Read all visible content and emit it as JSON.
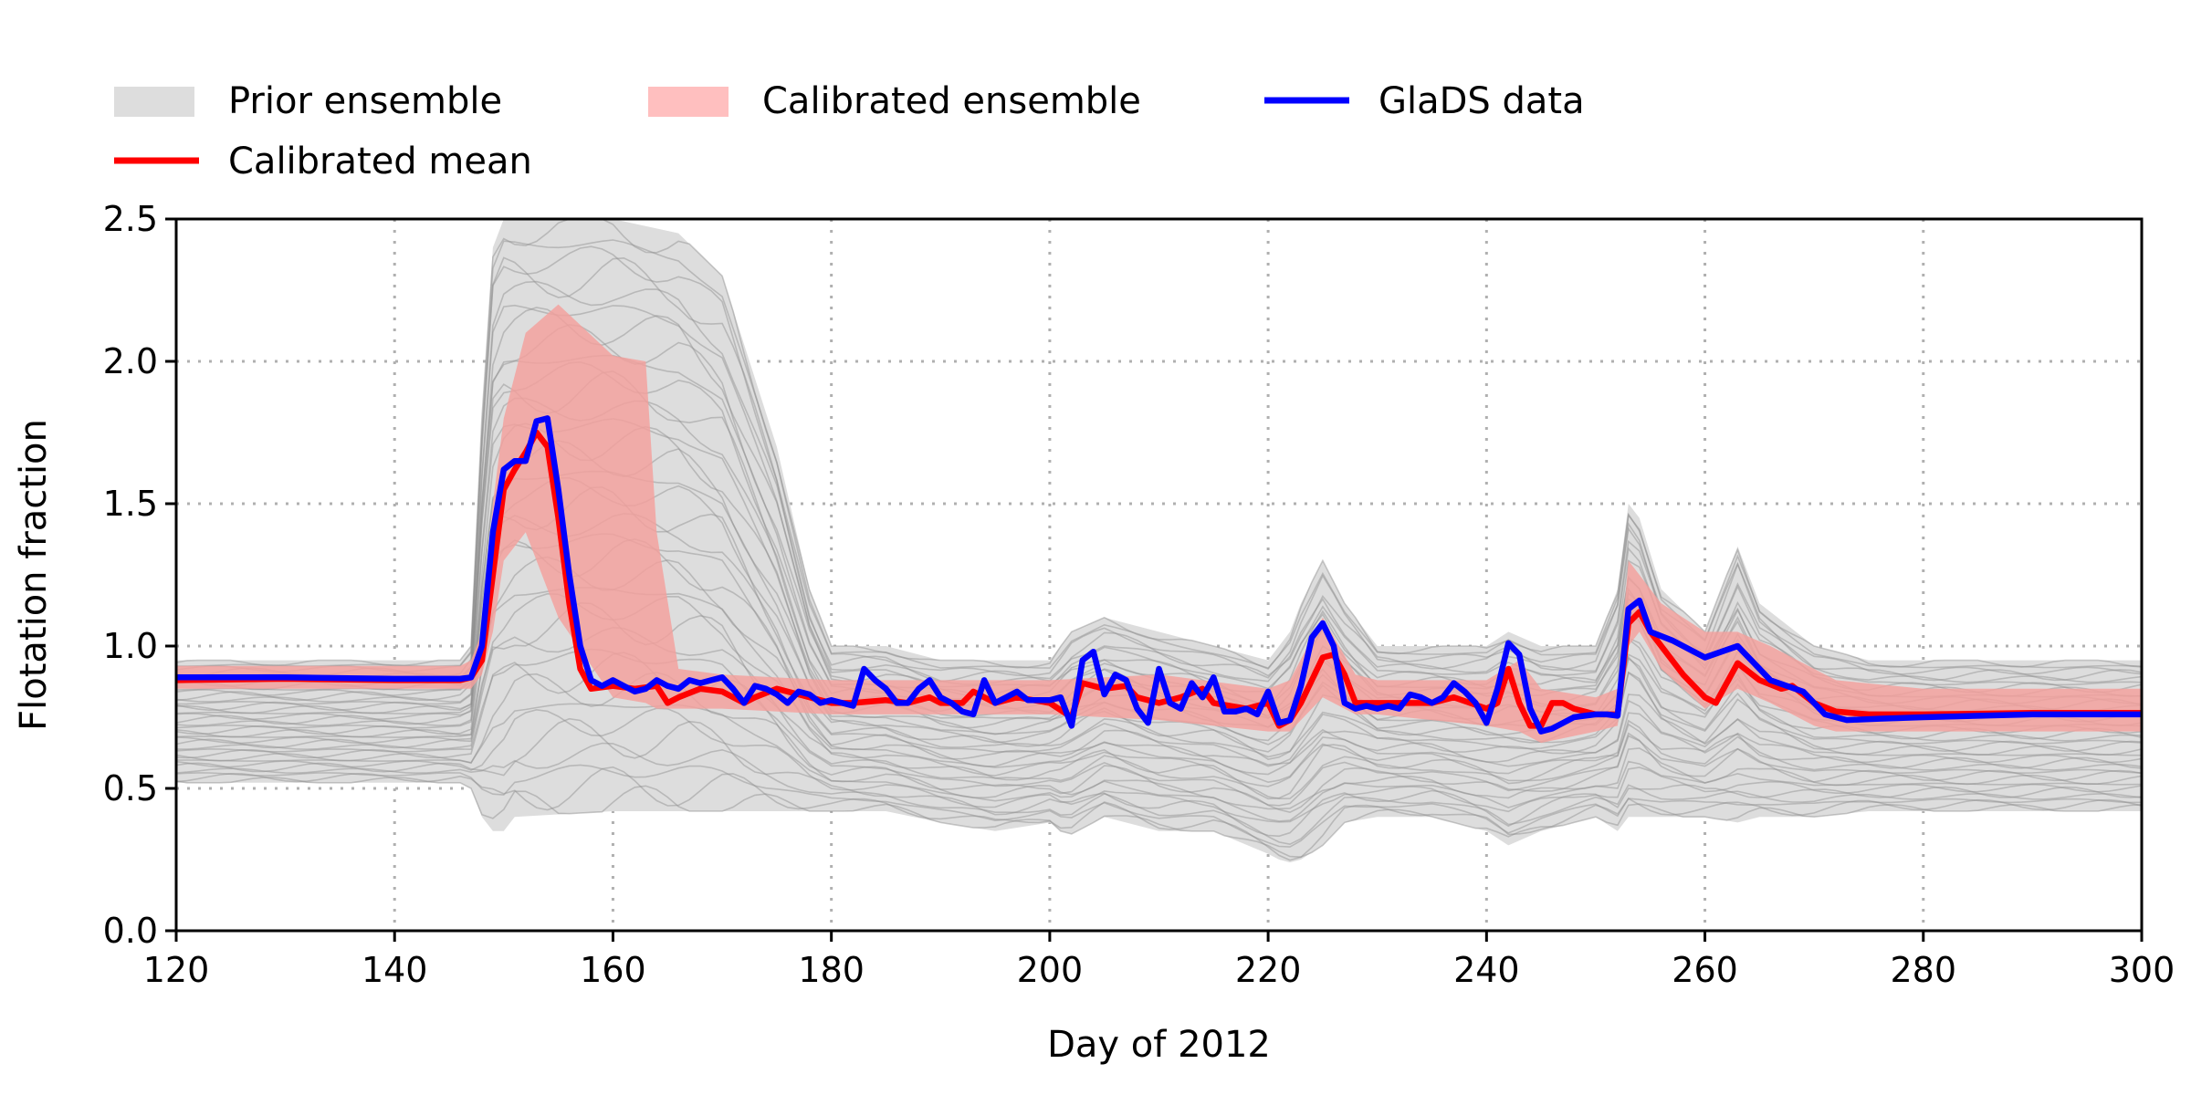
{
  "chart_data": {
    "type": "line",
    "xlabel": "Day of 2012",
    "ylabel": "Flotation fraction",
    "xlim": [
      120,
      300
    ],
    "ylim": [
      0,
      2.5
    ],
    "xticks": [
      120,
      140,
      160,
      180,
      200,
      220,
      240,
      260,
      280,
      300
    ],
    "yticks": [
      "0.0",
      "0.5",
      "1.0",
      "1.5",
      "2.0",
      "2.5"
    ],
    "grid": true,
    "legend": {
      "placement": "top-left, above plot",
      "entries": [
        {
          "label": "Prior ensemble",
          "kind": "band",
          "color": "#dddddd"
        },
        {
          "label": "Calibrated ensemble",
          "kind": "band",
          "color": "#ffbfbf"
        },
        {
          "label": "GlaDS data",
          "kind": "line",
          "color": "#0000ff"
        },
        {
          "label": "Calibrated mean",
          "kind": "line",
          "color": "#ff0000"
        }
      ]
    },
    "colors": {
      "prior_band": "#dddddd",
      "prior_lines": "#8c8c8c",
      "calibrated_band": "#f4a09c",
      "calibrated_mean": "#ff0000",
      "glads": "#0000ff",
      "grid": "#b0b0b0"
    },
    "prior_envelope": {
      "x": [
        120,
        146,
        147,
        148,
        149,
        150,
        151,
        160,
        166,
        170,
        175,
        178,
        180,
        181,
        185,
        190,
        195,
        200,
        201,
        202,
        205,
        210,
        215,
        220,
        221,
        222,
        223,
        225,
        227,
        230,
        235,
        240,
        242,
        245,
        250,
        252,
        253,
        254,
        256,
        260,
        263,
        265,
        270,
        275,
        280,
        290,
        300
      ],
      "lower": [
        0.52,
        0.52,
        0.5,
        0.4,
        0.35,
        0.35,
        0.4,
        0.42,
        0.42,
        0.42,
        0.42,
        0.42,
        0.42,
        0.42,
        0.42,
        0.38,
        0.35,
        0.38,
        0.35,
        0.34,
        0.4,
        0.35,
        0.35,
        0.27,
        0.25,
        0.24,
        0.25,
        0.3,
        0.38,
        0.4,
        0.4,
        0.35,
        0.3,
        0.35,
        0.4,
        0.35,
        0.4,
        0.4,
        0.4,
        0.4,
        0.38,
        0.4,
        0.4,
        0.42,
        0.42,
        0.42,
        0.42
      ],
      "upper": [
        0.95,
        0.95,
        1.0,
        1.8,
        2.4,
        2.5,
        2.5,
        2.5,
        2.45,
        2.3,
        1.7,
        1.2,
        1.0,
        1.0,
        1.0,
        0.95,
        0.95,
        0.95,
        1.0,
        1.05,
        1.1,
        1.05,
        1.0,
        0.95,
        1.0,
        1.05,
        1.15,
        1.3,
        1.15,
        1.0,
        1.0,
        1.0,
        1.05,
        1.0,
        1.0,
        1.2,
        1.5,
        1.45,
        1.2,
        1.05,
        1.35,
        1.15,
        1.0,
        0.95,
        0.95,
        0.95,
        0.95
      ]
    },
    "calibrated_envelope": {
      "x": [
        120,
        146,
        147,
        148,
        149,
        150,
        152,
        155,
        160,
        163,
        164,
        166,
        170,
        180,
        190,
        200,
        210,
        220,
        222,
        225,
        228,
        230,
        240,
        243,
        245,
        250,
        252,
        253,
        254,
        256,
        260,
        263,
        266,
        270,
        272,
        280,
        290,
        300
      ],
      "lower": [
        0.85,
        0.85,
        0.85,
        0.9,
        1.05,
        1.3,
        1.4,
        1.1,
        0.82,
        0.8,
        0.78,
        0.78,
        0.78,
        0.76,
        0.76,
        0.76,
        0.74,
        0.7,
        0.7,
        0.82,
        0.76,
        0.76,
        0.72,
        0.7,
        0.66,
        0.7,
        0.72,
        1.0,
        1.05,
        0.92,
        0.78,
        0.85,
        0.8,
        0.72,
        0.7,
        0.7,
        0.7,
        0.7
      ],
      "upper": [
        0.93,
        0.93,
        0.95,
        1.05,
        1.5,
        1.8,
        2.1,
        2.2,
        2.02,
        2.0,
        1.4,
        0.92,
        0.9,
        0.88,
        0.88,
        0.88,
        0.9,
        0.85,
        0.88,
        1.1,
        0.9,
        0.88,
        0.88,
        0.95,
        0.85,
        0.82,
        0.85,
        1.3,
        1.25,
        1.15,
        1.05,
        1.05,
        1.0,
        0.92,
        0.88,
        0.85,
        0.85,
        0.85
      ]
    },
    "series": [
      {
        "name": "Calibrated mean",
        "color": "#ff0000",
        "x": [
          120,
          130,
          140,
          146,
          147,
          148,
          149,
          150,
          151,
          152,
          153,
          154,
          155,
          156,
          157,
          158,
          160,
          162,
          164,
          165,
          166,
          168,
          170,
          172,
          173,
          175,
          177,
          180,
          182,
          185,
          187,
          189,
          190,
          192,
          193,
          195,
          197,
          200,
          202,
          203,
          205,
          207,
          208,
          210,
          212,
          214,
          215,
          218,
          220,
          221,
          222,
          223,
          224,
          225,
          226,
          227,
          228,
          230,
          233,
          235,
          237,
          240,
          241,
          242,
          243,
          244,
          245,
          246,
          247,
          248,
          250,
          252,
          253,
          254,
          255,
          258,
          260,
          261,
          263,
          265,
          267,
          268,
          270,
          272,
          275,
          280,
          290,
          300
        ],
        "y": [
          0.88,
          0.885,
          0.88,
          0.88,
          0.89,
          0.95,
          1.25,
          1.55,
          1.62,
          1.68,
          1.75,
          1.7,
          1.45,
          1.15,
          0.92,
          0.85,
          0.86,
          0.85,
          0.86,
          0.8,
          0.82,
          0.85,
          0.84,
          0.8,
          0.82,
          0.85,
          0.83,
          0.8,
          0.8,
          0.81,
          0.8,
          0.82,
          0.8,
          0.8,
          0.84,
          0.8,
          0.82,
          0.8,
          0.75,
          0.87,
          0.85,
          0.86,
          0.82,
          0.8,
          0.82,
          0.85,
          0.8,
          0.78,
          0.8,
          0.72,
          0.74,
          0.8,
          0.88,
          0.96,
          0.97,
          0.9,
          0.8,
          0.8,
          0.8,
          0.8,
          0.82,
          0.78,
          0.8,
          0.92,
          0.8,
          0.72,
          0.72,
          0.8,
          0.8,
          0.78,
          0.76,
          0.76,
          1.08,
          1.12,
          1.05,
          0.9,
          0.82,
          0.8,
          0.94,
          0.88,
          0.85,
          0.86,
          0.8,
          0.77,
          0.76,
          0.76,
          0.765,
          0.765
        ]
      },
      {
        "name": "GlaDS data",
        "color": "#0000ff",
        "x": [
          120,
          130,
          140,
          146,
          147,
          148,
          149,
          150,
          151,
          152,
          153,
          154,
          155,
          156,
          157,
          158,
          159,
          160,
          161,
          162,
          163,
          164,
          165,
          166,
          167,
          168,
          169,
          170,
          171,
          172,
          173,
          174,
          175,
          176,
          177,
          178,
          179,
          180,
          181,
          182,
          183,
          184,
          185,
          186,
          187,
          188,
          189,
          190,
          191,
          192,
          193,
          194,
          195,
          196,
          197,
          198,
          199,
          200,
          201,
          202,
          203,
          204,
          205,
          206,
          207,
          208,
          209,
          210,
          211,
          212,
          213,
          214,
          215,
          216,
          217,
          218,
          219,
          220,
          221,
          222,
          223,
          224,
          225,
          226,
          227,
          228,
          229,
          230,
          231,
          232,
          233,
          234,
          235,
          236,
          237,
          238,
          239,
          240,
          241,
          242,
          243,
          244,
          245,
          246,
          247,
          248,
          249,
          250,
          251,
          252,
          253,
          254,
          255,
          257,
          260,
          263,
          266,
          269,
          271,
          273,
          276,
          280,
          290,
          300
        ],
        "y": [
          0.89,
          0.89,
          0.885,
          0.885,
          0.89,
          1.0,
          1.4,
          1.62,
          1.65,
          1.65,
          1.79,
          1.8,
          1.55,
          1.25,
          1.0,
          0.88,
          0.86,
          0.88,
          0.86,
          0.84,
          0.85,
          0.88,
          0.86,
          0.85,
          0.88,
          0.87,
          0.88,
          0.89,
          0.85,
          0.8,
          0.86,
          0.85,
          0.83,
          0.8,
          0.84,
          0.83,
          0.8,
          0.81,
          0.8,
          0.79,
          0.92,
          0.88,
          0.85,
          0.8,
          0.8,
          0.85,
          0.88,
          0.82,
          0.8,
          0.77,
          0.76,
          0.88,
          0.8,
          0.82,
          0.84,
          0.81,
          0.81,
          0.81,
          0.82,
          0.72,
          0.95,
          0.98,
          0.83,
          0.9,
          0.88,
          0.78,
          0.73,
          0.92,
          0.8,
          0.78,
          0.87,
          0.82,
          0.89,
          0.77,
          0.77,
          0.78,
          0.76,
          0.84,
          0.73,
          0.74,
          0.86,
          1.03,
          1.08,
          1.0,
          0.8,
          0.78,
          0.79,
          0.78,
          0.79,
          0.78,
          0.83,
          0.82,
          0.8,
          0.82,
          0.87,
          0.84,
          0.8,
          0.73,
          0.85,
          1.01,
          0.97,
          0.78,
          0.7,
          0.71,
          0.73,
          0.75,
          0.755,
          0.76,
          0.76,
          0.755,
          1.13,
          1.16,
          1.05,
          1.02,
          0.96,
          1.0,
          0.88,
          0.84,
          0.76,
          0.74,
          0.745,
          0.75,
          0.76,
          0.76
        ]
      }
    ]
  }
}
